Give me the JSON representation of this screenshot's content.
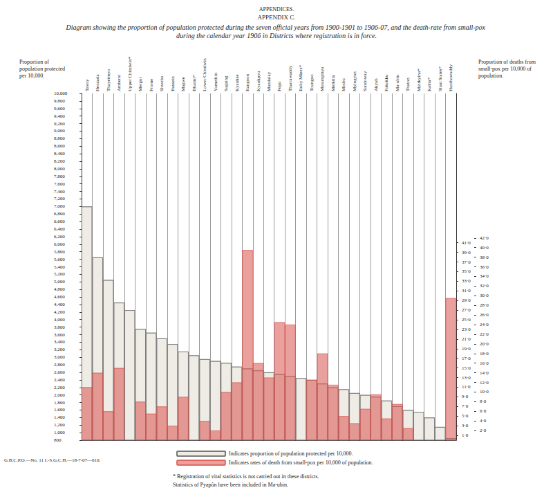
{
  "chart_data": {
    "type": "bar",
    "header": "APPENDICES.",
    "title": "APPENDIX C.",
    "subtitle": "Diagram showing the proportion of population protected during the seven official years from 1900-1901 to 1906-07, and the death-rate from small-pox during the calendar year 1906 in Districts where registration is in force.",
    "ylabel": "Proportion of population protected per 10,000.",
    "y2label": "Proportion of deaths from small-pox per 10,000 of population.",
    "categories": [
      "Tavoy",
      "Henzada",
      "Thayetmyo",
      "Amherst",
      "Upper Chindwin*",
      "Mergui",
      "Prome",
      "Shwebo",
      "Bassein",
      "Magwe",
      "Bhamo*",
      "Lower Chindwin",
      "Yamethin",
      "Sagaing",
      "Kyaukse",
      "Rangoon",
      "Kyaukpyu",
      "Mandalay",
      "Pegu",
      "Tharrawaddy",
      "Ruby Mines*",
      "Toungoo",
      "Myaungmya",
      "Meiktila",
      "Minbu",
      "Myingyan",
      "Sandoway",
      "Akyab",
      "Pakokku",
      "Ma-ubin",
      "Thaton",
      "Myitkyina*",
      "Katha*",
      "Shan States*",
      "Hanthawaddy"
    ],
    "series": [
      {
        "name": "Indicates proportion of population protected per 10,000.",
        "color": "#7a7a7a",
        "values": [
          7000,
          5650,
          5050,
          4450,
          4250,
          3750,
          3650,
          3500,
          3350,
          3150,
          3050,
          2950,
          2900,
          2850,
          2750,
          2700,
          2650,
          2600,
          2550,
          2500,
          2450,
          2400,
          2300,
          2200,
          2150,
          2050,
          2000,
          1950,
          1850,
          1700,
          1600,
          1550,
          1400,
          1150,
          850
        ]
      },
      {
        "name": "Indicates rates of death from small-pox per 10,000 of population.",
        "color": "#d9534f",
        "axis": "y2",
        "values": [
          11,
          14,
          6,
          15,
          null,
          8,
          5.5,
          7,
          3,
          9,
          null,
          4,
          2,
          10,
          12,
          39.5,
          16,
          13,
          24.5,
          24,
          null,
          12.5,
          18,
          11.5,
          5,
          3.5,
          6.5,
          9.5,
          4.5,
          7.5,
          2.5,
          null,
          null,
          null,
          29.5
        ]
      }
    ],
    "ylim": [
      800,
      10000
    ],
    "yticks": [
      800,
      {
        "value": 1000,
        "label": "1,000"
      },
      {
        "value": 1200,
        "label": "1,200"
      },
      {
        "value": 1400,
        "label": "1,400"
      },
      {
        "value": 1600,
        "label": "1,600"
      },
      {
        "value": 1800,
        "label": "1,800"
      },
      {
        "value": 2000,
        "label": "2,000"
      },
      {
        "value": 2200,
        "label": "2,200"
      },
      {
        "value": 2400,
        "label": "2,400"
      },
      {
        "value": 2600,
        "label": "2,600"
      },
      {
        "value": 2800,
        "label": "2,800"
      },
      {
        "value": 3000,
        "label": "3,000"
      },
      {
        "value": 3200,
        "label": "3,200"
      },
      {
        "value": 3400,
        "label": "3,400"
      },
      {
        "value": 3600,
        "label": "3,600"
      },
      {
        "value": 3800,
        "label": "3,800"
      },
      {
        "value": 4000,
        "label": "4,000"
      },
      {
        "value": 4200,
        "label": "4,200"
      },
      {
        "value": 4400,
        "label": "4,400"
      },
      {
        "value": 4600,
        "label": "4,600"
      },
      {
        "value": 4800,
        "label": "4,800"
      },
      {
        "value": 5000,
        "label": "5,000"
      },
      {
        "value": 5200,
        "label": "5,200"
      },
      {
        "value": 5400,
        "label": "5,400"
      },
      {
        "value": 5600,
        "label": "5,600"
      },
      {
        "value": 5800,
        "label": "5,800"
      },
      {
        "value": 6000,
        "label": "6,000"
      },
      {
        "value": 6200,
        "label": "6,200"
      },
      {
        "value": 6400,
        "label": "6,400"
      },
      {
        "value": 6600,
        "label": "6,600"
      },
      {
        "value": 6800,
        "label": "6,800"
      },
      {
        "value": 7000,
        "label": "7,000"
      },
      {
        "value": 7200,
        "label": "7,200"
      },
      {
        "value": 7400,
        "label": "7,400"
      },
      {
        "value": 7600,
        "label": "7,600"
      },
      {
        "value": 7800,
        "label": "7,800"
      },
      {
        "value": 8000,
        "label": "8,000"
      },
      {
        "value": 8200,
        "label": "8,200"
      },
      {
        "value": 8400,
        "label": "8,400"
      },
      {
        "value": 8600,
        "label": "8,600"
      },
      {
        "value": 8800,
        "label": "8,800"
      },
      {
        "value": 9000,
        "label": "9,000"
      },
      {
        "value": 9200,
        "label": "9,200"
      },
      {
        "value": 9400,
        "label": "9,400"
      },
      {
        "value": 9600,
        "label": "9,600"
      },
      {
        "value": 9800,
        "label": "9,800"
      },
      {
        "value": 10000,
        "label": "10,000"
      }
    ],
    "y2lim": [
      0,
      72
    ],
    "y2ticks": [
      {
        "value": 1,
        "label": "1·0"
      },
      {
        "value": 2,
        "label": "2·0"
      },
      {
        "value": 3,
        "label": "3·0"
      },
      {
        "value": 4,
        "label": "4·0"
      },
      {
        "value": 5,
        "label": "5·0"
      },
      {
        "value": 6,
        "label": "6·0"
      },
      {
        "value": 7,
        "label": "7·0"
      },
      {
        "value": 8,
        "label": "8·0"
      },
      {
        "value": 9,
        "label": "9·0"
      },
      {
        "value": 10,
        "label": "10·0"
      },
      {
        "value": 11,
        "label": "11·0"
      },
      {
        "value": 12,
        "label": "12·0"
      },
      {
        "value": 13,
        "label": "13·0"
      },
      {
        "value": 14,
        "label": "14·0"
      },
      {
        "value": 15,
        "label": "15·0"
      },
      {
        "value": 16,
        "label": "16·0"
      },
      {
        "value": 17,
        "label": "17·0"
      },
      {
        "value": 18,
        "label": "18·0"
      },
      {
        "value": 19,
        "label": "19·0"
      },
      {
        "value": 20,
        "label": "20·0"
      },
      {
        "value": 21,
        "label": "21·0"
      },
      {
        "value": 22,
        "label": "22·0"
      },
      {
        "value": 23,
        "label": "23·0"
      },
      {
        "value": 24,
        "label": "24·0"
      },
      {
        "value": 25,
        "label": "25·0"
      },
      {
        "value": 26,
        "label": "26·0"
      },
      {
        "value": 27,
        "label": "27·0"
      },
      {
        "value": 28,
        "label": "28·0"
      },
      {
        "value": 29,
        "label": "29·0"
      },
      {
        "value": 30,
        "label": "30·0"
      },
      {
        "value": 31,
        "label": "31·0"
      },
      {
        "value": 32,
        "label": "32·0"
      },
      {
        "value": 33,
        "label": "33·0"
      },
      {
        "value": 34,
        "label": "34·0"
      },
      {
        "value": 35,
        "label": "35·0"
      },
      {
        "value": 36,
        "label": "36·0"
      },
      {
        "value": 37,
        "label": "37·0"
      },
      {
        "value": 38,
        "label": "38·0"
      },
      {
        "value": 39,
        "label": "39·0"
      },
      {
        "value": 40,
        "label": "40·0"
      },
      {
        "value": 41,
        "label": "41·0"
      },
      {
        "value": 42,
        "label": "42·0"
      }
    ],
    "grid": true,
    "legend": "bottom",
    "annotations": [
      "* Registration of vital statistics is not carried out in these districts.",
      "Statistics of Pyapôn have been included in Ma-ubin.",
      "G.B.C.P.O.—No. 11 I.-S.G.C.H.—18-7-07—610."
    ]
  }
}
